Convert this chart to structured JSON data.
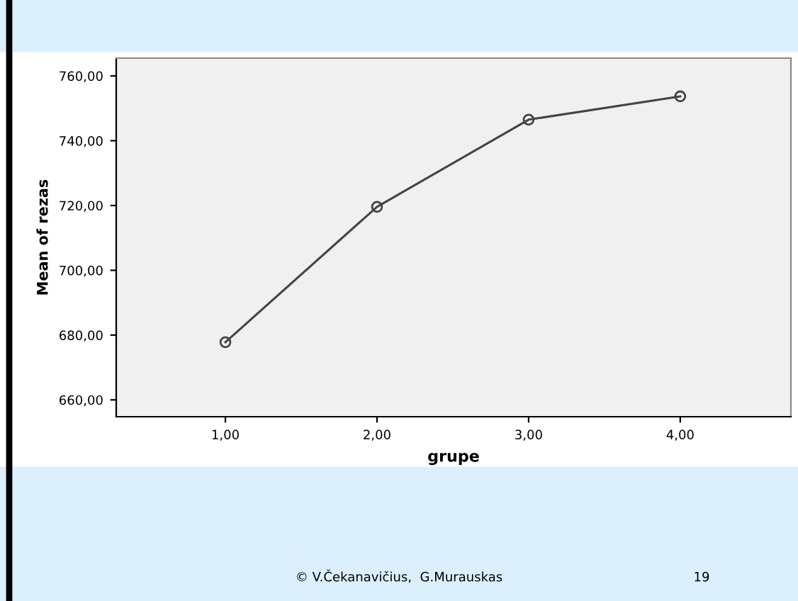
{
  "chart_data": {
    "type": "line",
    "xlabel": "grupe",
    "ylabel": "Mean of rezas",
    "x": [
      1,
      2,
      3,
      4
    ],
    "series": [
      {
        "color": "#444444",
        "values": [
          677.8,
          719.6,
          746.5,
          753.7
        ]
      }
    ],
    "xlim": [
      0.28,
      4.73
    ],
    "ylim": [
      654.8,
      765.5
    ],
    "xticks": [
      {
        "value": 1,
        "label": "1,00"
      },
      {
        "value": 2,
        "label": "2,00"
      },
      {
        "value": 3,
        "label": "3,00"
      },
      {
        "value": 4,
        "label": "4,00"
      }
    ],
    "yticks": [
      {
        "value": 660,
        "label": "660,00"
      },
      {
        "value": 680,
        "label": "680,00"
      },
      {
        "value": 700,
        "label": "700,00"
      },
      {
        "value": 720,
        "label": "720,00"
      },
      {
        "value": 740,
        "label": "740,00"
      },
      {
        "value": 760,
        "label": "760,00"
      }
    ],
    "marker": "circle",
    "line_style": "solid",
    "grid": false,
    "legend": false,
    "annotations": [
      "© V.Čekanavičius,  G.Murauskas",
      "19"
    ]
  }
}
